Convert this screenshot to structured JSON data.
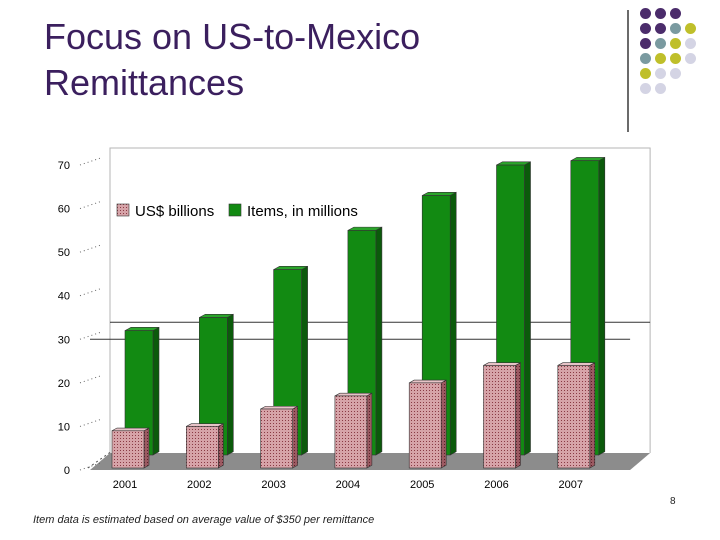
{
  "slide": {
    "title_line1": "Focus on US-to-Mexico",
    "title_line2": "Remittances",
    "footer": "Item data is estimated based on average value of $350 per remittance",
    "page_number": "8"
  },
  "colors": {
    "title": "#3b1f5e",
    "bar_pink": "#d6a3a8",
    "bar_green": "#128a12",
    "floor": "#8c8c8c",
    "dot_palette": [
      "#4b2c6b",
      "#7a9aa0",
      "#bfbf2a",
      "#d4d4e4"
    ]
  },
  "chart_data": {
    "type": "bar",
    "style": "3d-clustered",
    "categories": [
      "2001",
      "2002",
      "2003",
      "2004",
      "2005",
      "2006",
      "2007"
    ],
    "series": [
      {
        "name": "US$ billions",
        "values": [
          9,
          10,
          14,
          17,
          20,
          24,
          24
        ]
      },
      {
        "name": "Items, in millions",
        "values": [
          29,
          32,
          43,
          52,
          60,
          67,
          68
        ]
      }
    ],
    "ylim": [
      0,
      70
    ],
    "yticks": [
      0,
      10,
      20,
      30,
      40,
      50,
      60,
      70
    ],
    "gridlines": [
      30
    ],
    "legend": {
      "position": "top-left"
    },
    "title": "",
    "xlabel": "",
    "ylabel": ""
  }
}
